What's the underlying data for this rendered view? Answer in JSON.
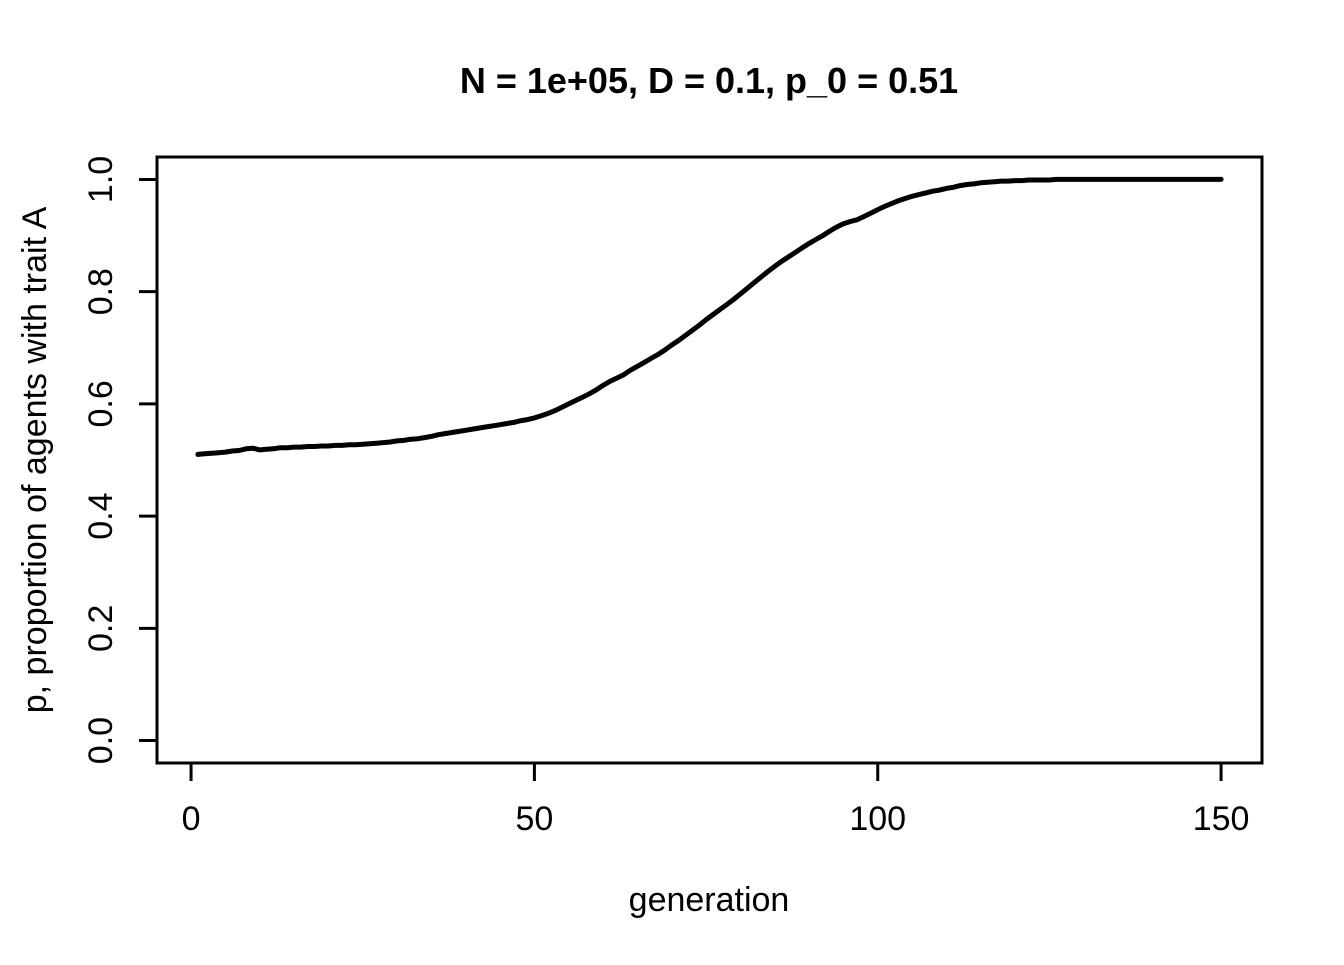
{
  "chart_data": {
    "type": "line",
    "title": "N = 1e+05, D = 0.1, p_0 = 0.51",
    "xlabel": "generation",
    "ylabel": "p, proportion of agents with trait A",
    "x_ticks": [
      0,
      50,
      100,
      150
    ],
    "x_tick_labels": [
      "0",
      "50",
      "100",
      "150"
    ],
    "y_ticks": [
      0.0,
      0.2,
      0.4,
      0.6,
      0.8,
      1.0
    ],
    "y_tick_labels": [
      "0.0",
      "0.2",
      "0.4",
      "0.6",
      "0.8",
      "1.0"
    ],
    "xlim": [
      -4.96,
      155.96
    ],
    "ylim": [
      -0.04,
      1.04
    ],
    "grid": false,
    "legend": false,
    "background": "#ffffff",
    "line_color": "#000000",
    "line_width": 5,
    "series": [
      {
        "name": "p",
        "x_start": 1,
        "x_step": 1,
        "y": [
          0.51,
          0.511,
          0.512,
          0.513,
          0.514,
          0.516,
          0.517,
          0.52,
          0.521,
          0.518,
          0.519,
          0.52,
          0.522,
          0.522,
          0.523,
          0.523,
          0.524,
          0.524,
          0.525,
          0.525,
          0.526,
          0.526,
          0.527,
          0.527,
          0.528,
          0.529,
          0.53,
          0.531,
          0.532,
          0.534,
          0.535,
          0.537,
          0.538,
          0.54,
          0.542,
          0.545,
          0.547,
          0.549,
          0.551,
          0.553,
          0.555,
          0.557,
          0.559,
          0.561,
          0.563,
          0.565,
          0.567,
          0.57,
          0.572,
          0.575,
          0.579,
          0.583,
          0.588,
          0.594,
          0.6,
          0.606,
          0.612,
          0.618,
          0.625,
          0.633,
          0.64,
          0.646,
          0.652,
          0.66,
          0.667,
          0.674,
          0.681,
          0.688,
          0.696,
          0.705,
          0.713,
          0.722,
          0.731,
          0.74,
          0.75,
          0.759,
          0.768,
          0.777,
          0.786,
          0.796,
          0.806,
          0.816,
          0.826,
          0.836,
          0.845,
          0.854,
          0.862,
          0.87,
          0.878,
          0.886,
          0.893,
          0.9,
          0.908,
          0.915,
          0.921,
          0.925,
          0.928,
          0.934,
          0.94,
          0.946,
          0.952,
          0.957,
          0.962,
          0.966,
          0.97,
          0.973,
          0.976,
          0.979,
          0.981,
          0.984,
          0.986,
          0.989,
          0.991,
          0.992,
          0.994,
          0.995,
          0.996,
          0.997,
          0.997,
          0.998,
          0.998,
          0.999,
          0.999,
          0.999,
          0.999,
          1.0,
          1.0,
          1.0,
          1.0,
          1.0,
          1.0,
          1.0,
          1.0,
          1.0,
          1.0,
          1.0,
          1.0,
          1.0,
          1.0,
          1.0,
          1.0,
          1.0,
          1.0,
          1.0,
          1.0,
          1.0,
          1.0,
          1.0,
          1.0,
          1.0
        ]
      }
    ]
  }
}
